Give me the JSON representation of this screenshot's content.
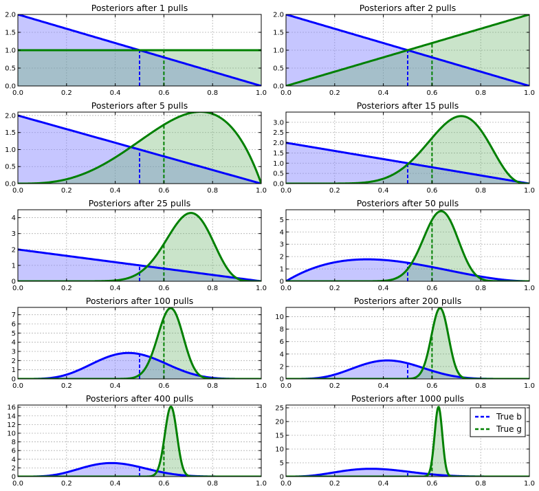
{
  "chart_data": {
    "type": "area",
    "legend": {
      "placement": "top-right",
      "entries": [
        {
          "label": "True b",
          "color": "#0000ff",
          "style": "dashed"
        },
        {
          "label": "True g",
          "color": "#008000",
          "style": "dashed"
        }
      ]
    },
    "series_colors": {
      "b": {
        "line": "#0000ff",
        "fill": "#bfbfff"
      },
      "g": {
        "line": "#008000",
        "fill": "#bfe0bf"
      }
    },
    "true_values": {
      "b": 0.5,
      "g": 0.6
    },
    "x_ticks": [
      "0.0",
      "0.2",
      "0.4",
      "0.6",
      "0.8",
      "1.0"
    ],
    "grid": true,
    "panels": [
      {
        "title": "Posteriors after 1 pulls",
        "xlim": [
          0,
          1
        ],
        "ylim": [
          0,
          2.0
        ],
        "y_ticks": [
          "0.0",
          "0.5",
          "1.0",
          "1.5",
          "2.0"
        ],
        "y_tick_values": [
          0,
          0.5,
          1,
          1.5,
          2
        ],
        "series": [
          {
            "name": "b",
            "alpha": 1,
            "beta": 2
          },
          {
            "name": "g",
            "alpha": 1,
            "beta": 1
          }
        ]
      },
      {
        "title": "Posteriors after 2 pulls",
        "xlim": [
          0,
          1
        ],
        "ylim": [
          0,
          2.0
        ],
        "y_ticks": [
          "0.0",
          "0.5",
          "1.0",
          "1.5",
          "2.0"
        ],
        "y_tick_values": [
          0,
          0.5,
          1,
          1.5,
          2
        ],
        "series": [
          {
            "name": "b",
            "alpha": 1,
            "beta": 2
          },
          {
            "name": "g",
            "alpha": 2,
            "beta": 1
          }
        ]
      },
      {
        "title": "Posteriors after 5 pulls",
        "xlim": [
          0,
          1
        ],
        "ylim": [
          0,
          2.1
        ],
        "y_ticks": [
          "0.0",
          "0.5",
          "1.0",
          "1.5",
          "2.0"
        ],
        "y_tick_values": [
          0,
          0.5,
          1,
          1.5,
          2
        ],
        "series": [
          {
            "name": "b",
            "alpha": 1,
            "beta": 2
          },
          {
            "name": "g",
            "alpha": 4,
            "beta": 2
          }
        ]
      },
      {
        "title": "Posteriors after 15 pulls",
        "xlim": [
          0,
          1
        ],
        "ylim": [
          0,
          3.5
        ],
        "y_ticks": [
          "0.0",
          "0.5",
          "1.0",
          "1.5",
          "2.0",
          "2.5",
          "3.0"
        ],
        "y_tick_values": [
          0,
          0.5,
          1,
          1.5,
          2,
          2.5,
          3
        ],
        "series": [
          {
            "name": "b",
            "alpha": 1,
            "beta": 2
          },
          {
            "name": "g",
            "alpha": 10,
            "beta": 4.5
          }
        ]
      },
      {
        "title": "Posteriors after 25 pulls",
        "xlim": [
          0,
          1
        ],
        "ylim": [
          0,
          4.5
        ],
        "y_ticks": [
          "0",
          "1",
          "2",
          "3",
          "4"
        ],
        "y_tick_values": [
          0,
          1,
          2,
          3,
          4
        ],
        "series": [
          {
            "name": "b",
            "alpha": 1,
            "beta": 2
          },
          {
            "name": "g",
            "alpha": 17,
            "beta": 7.5
          }
        ]
      },
      {
        "title": "Posteriors after 50 pulls",
        "xlim": [
          0,
          1
        ],
        "ylim": [
          0,
          5.8
        ],
        "y_ticks": [
          "0",
          "1",
          "2",
          "3",
          "4",
          "5"
        ],
        "y_tick_values": [
          0,
          1,
          2,
          3,
          4,
          5
        ],
        "series": [
          {
            "name": "b",
            "alpha": 2,
            "beta": 3
          },
          {
            "name": "g",
            "alpha": 30,
            "beta": 17.5
          }
        ]
      },
      {
        "title": "Posteriors after 100 pulls",
        "xlim": [
          0,
          1
        ],
        "ylim": [
          0,
          7.8
        ],
        "y_ticks": [
          "0",
          "1",
          "2",
          "3",
          "4",
          "5",
          "6",
          "7"
        ],
        "y_tick_values": [
          0,
          1,
          2,
          3,
          4,
          5,
          6,
          7
        ],
        "series": [
          {
            "name": "b",
            "alpha": 6,
            "beta": 7
          },
          {
            "name": "g",
            "alpha": 55,
            "beta": 33
          }
        ]
      },
      {
        "title": "Posteriors after 200 pulls",
        "xlim": [
          0,
          1
        ],
        "ylim": [
          0,
          11.5
        ],
        "y_ticks": [
          "0",
          "2",
          "4",
          "6",
          "8",
          "10"
        ],
        "y_tick_values": [
          0,
          2,
          4,
          6,
          8,
          10
        ],
        "series": [
          {
            "name": "b",
            "alpha": 6,
            "beta": 8
          },
          {
            "name": "g",
            "alpha": 120,
            "beta": 70
          }
        ]
      },
      {
        "title": "Posteriors after 400 pulls",
        "xlim": [
          0,
          1
        ],
        "ylim": [
          0,
          16.5
        ],
        "y_ticks": [
          "0",
          "2",
          "4",
          "6",
          "8",
          "10",
          "12",
          "14",
          "16"
        ],
        "y_tick_values": [
          0,
          2,
          4,
          6,
          8,
          10,
          12,
          14,
          16
        ],
        "series": [
          {
            "name": "b",
            "alpha": 6,
            "beta": 9
          },
          {
            "name": "g",
            "alpha": 240,
            "beta": 142
          }
        ]
      },
      {
        "title": "Posteriors after 1000 pulls",
        "xlim": [
          0,
          1
        ],
        "ylim": [
          0,
          26
        ],
        "y_ticks": [
          "0",
          "5",
          "10",
          "15",
          "20",
          "25"
        ],
        "y_tick_values": [
          0,
          5,
          10,
          15,
          20,
          25
        ],
        "series": [
          {
            "name": "b",
            "alpha": 4.5,
            "beta": 7.5
          },
          {
            "name": "g",
            "alpha": 590,
            "beta": 352
          }
        ]
      }
    ]
  }
}
